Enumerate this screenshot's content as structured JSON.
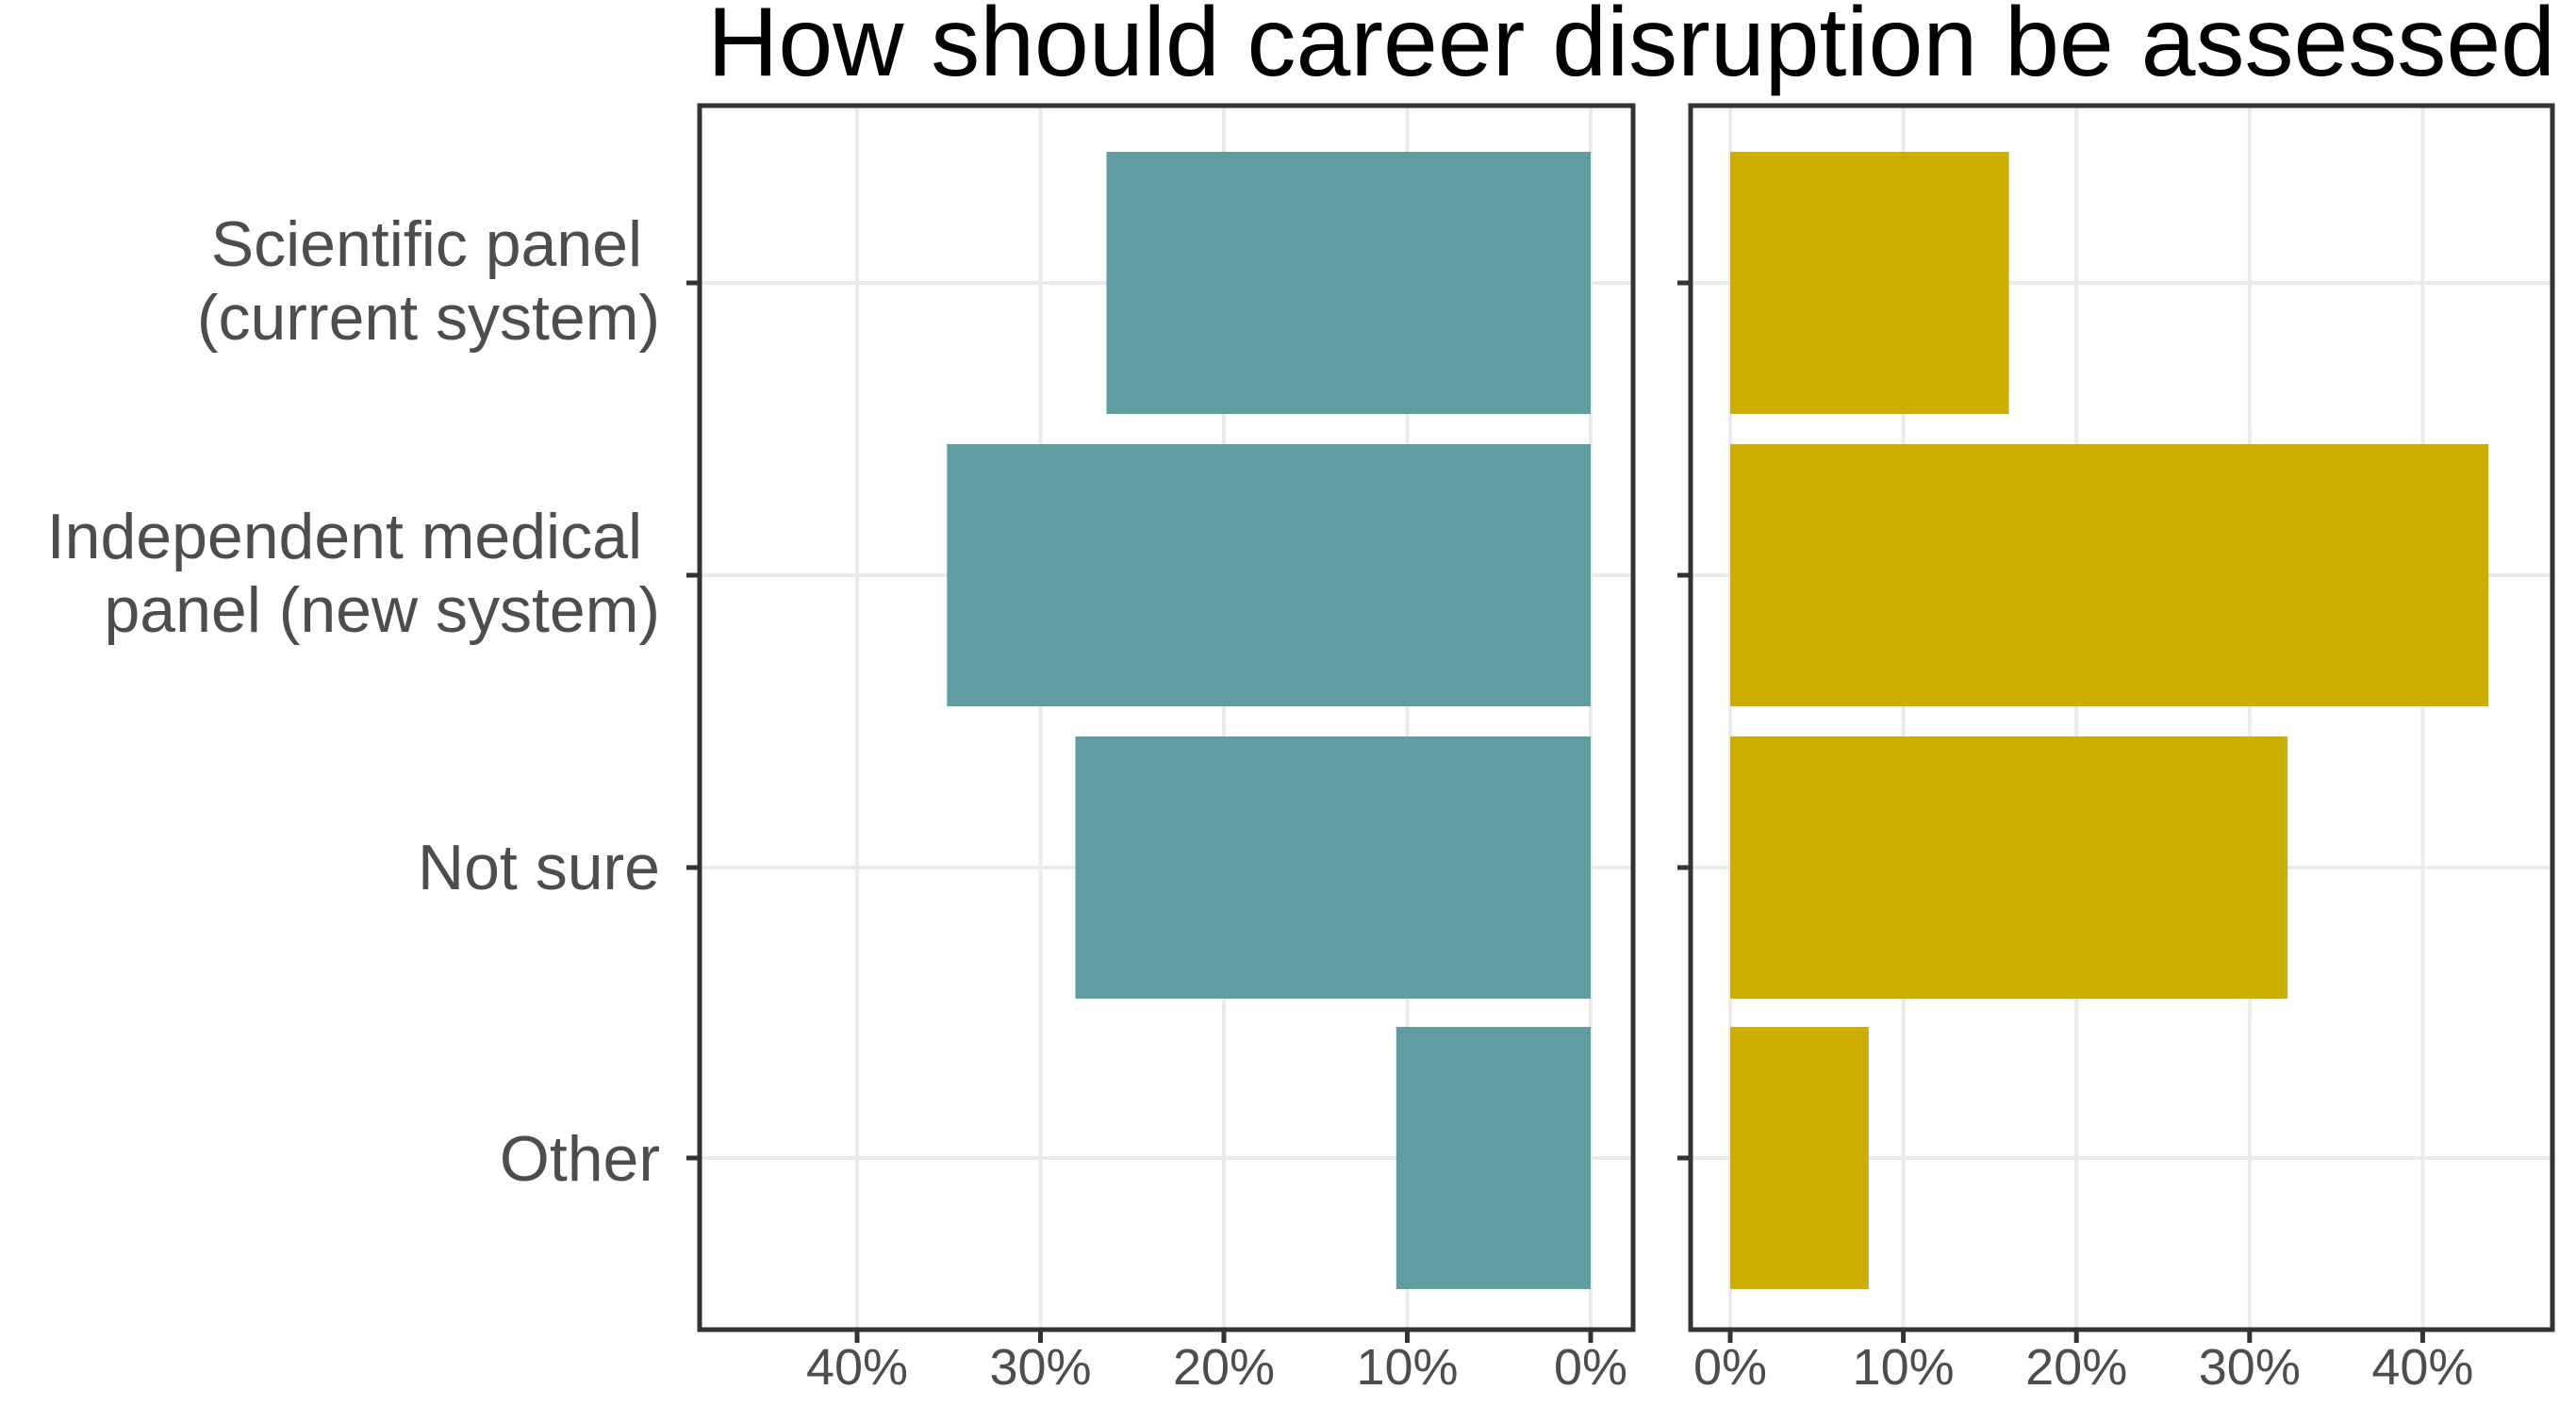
{
  "chart_data": {
    "type": "bar",
    "orientation": "horizontal",
    "layout": "back-to-back",
    "title": "How should career disruption be assessed",
    "categories": [
      [
        "Scientific panel",
        "(current system)"
      ],
      [
        "Independent medical",
        "panel (new system)"
      ],
      [
        "Not sure"
      ],
      [
        "Other"
      ]
    ],
    "grid": true,
    "panels": [
      {
        "side": "left",
        "direction": "reversed",
        "values": [
          26.4,
          35.1,
          28.1,
          10.6
        ],
        "xlim": [
          0,
          47
        ],
        "ticks": [
          40,
          30,
          20,
          10,
          0
        ],
        "tick_labels": [
          "40%",
          "30%",
          "20%",
          "10%",
          "0%"
        ],
        "color": "#609da0"
      },
      {
        "side": "right",
        "direction": "normal",
        "values": [
          16.1,
          43.8,
          32.2,
          8.0
        ],
        "xlim": [
          0,
          47
        ],
        "ticks": [
          0,
          10,
          20,
          30,
          40
        ],
        "tick_labels": [
          "0%",
          "10%",
          "20%",
          "30%",
          "40%"
        ],
        "color": "#cdad00"
      }
    ],
    "grid_color": "#ebebeb",
    "frame_color": "#333333",
    "label_color": "#4d4d4d"
  }
}
